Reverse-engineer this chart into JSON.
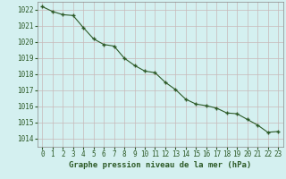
{
  "x": [
    0,
    1,
    2,
    3,
    4,
    5,
    6,
    7,
    8,
    9,
    10,
    11,
    12,
    13,
    14,
    15,
    16,
    17,
    18,
    19,
    20,
    21,
    22,
    23
  ],
  "y": [
    1022.2,
    1021.9,
    1021.7,
    1021.65,
    1020.9,
    1020.2,
    1019.85,
    1019.75,
    1019.0,
    1018.55,
    1018.2,
    1018.1,
    1017.5,
    1017.05,
    1016.45,
    1016.15,
    1016.05,
    1015.9,
    1015.6,
    1015.55,
    1015.2,
    1014.85,
    1014.4,
    1014.45
  ],
  "line_color": "#2d5a27",
  "marker_color": "#2d5a27",
  "bg_color": "#d4f0f0",
  "grid_color_major": "#b0b0b0",
  "grid_color_minor": "#c8d8d8",
  "xlabel": "Graphe pression niveau de la mer (hPa)",
  "xlabel_color": "#2d5a27",
  "tick_color": "#2d5a27",
  "ylim": [
    1013.5,
    1022.5
  ],
  "yticks": [
    1014,
    1015,
    1016,
    1017,
    1018,
    1019,
    1020,
    1021,
    1022
  ],
  "xticks": [
    0,
    1,
    2,
    3,
    4,
    5,
    6,
    7,
    8,
    9,
    10,
    11,
    12,
    13,
    14,
    15,
    16,
    17,
    18,
    19,
    20,
    21,
    22,
    23
  ],
  "tick_fontsize": 5.5,
  "xlabel_fontsize": 6.5,
  "linewidth": 0.8,
  "markersize": 3.5
}
